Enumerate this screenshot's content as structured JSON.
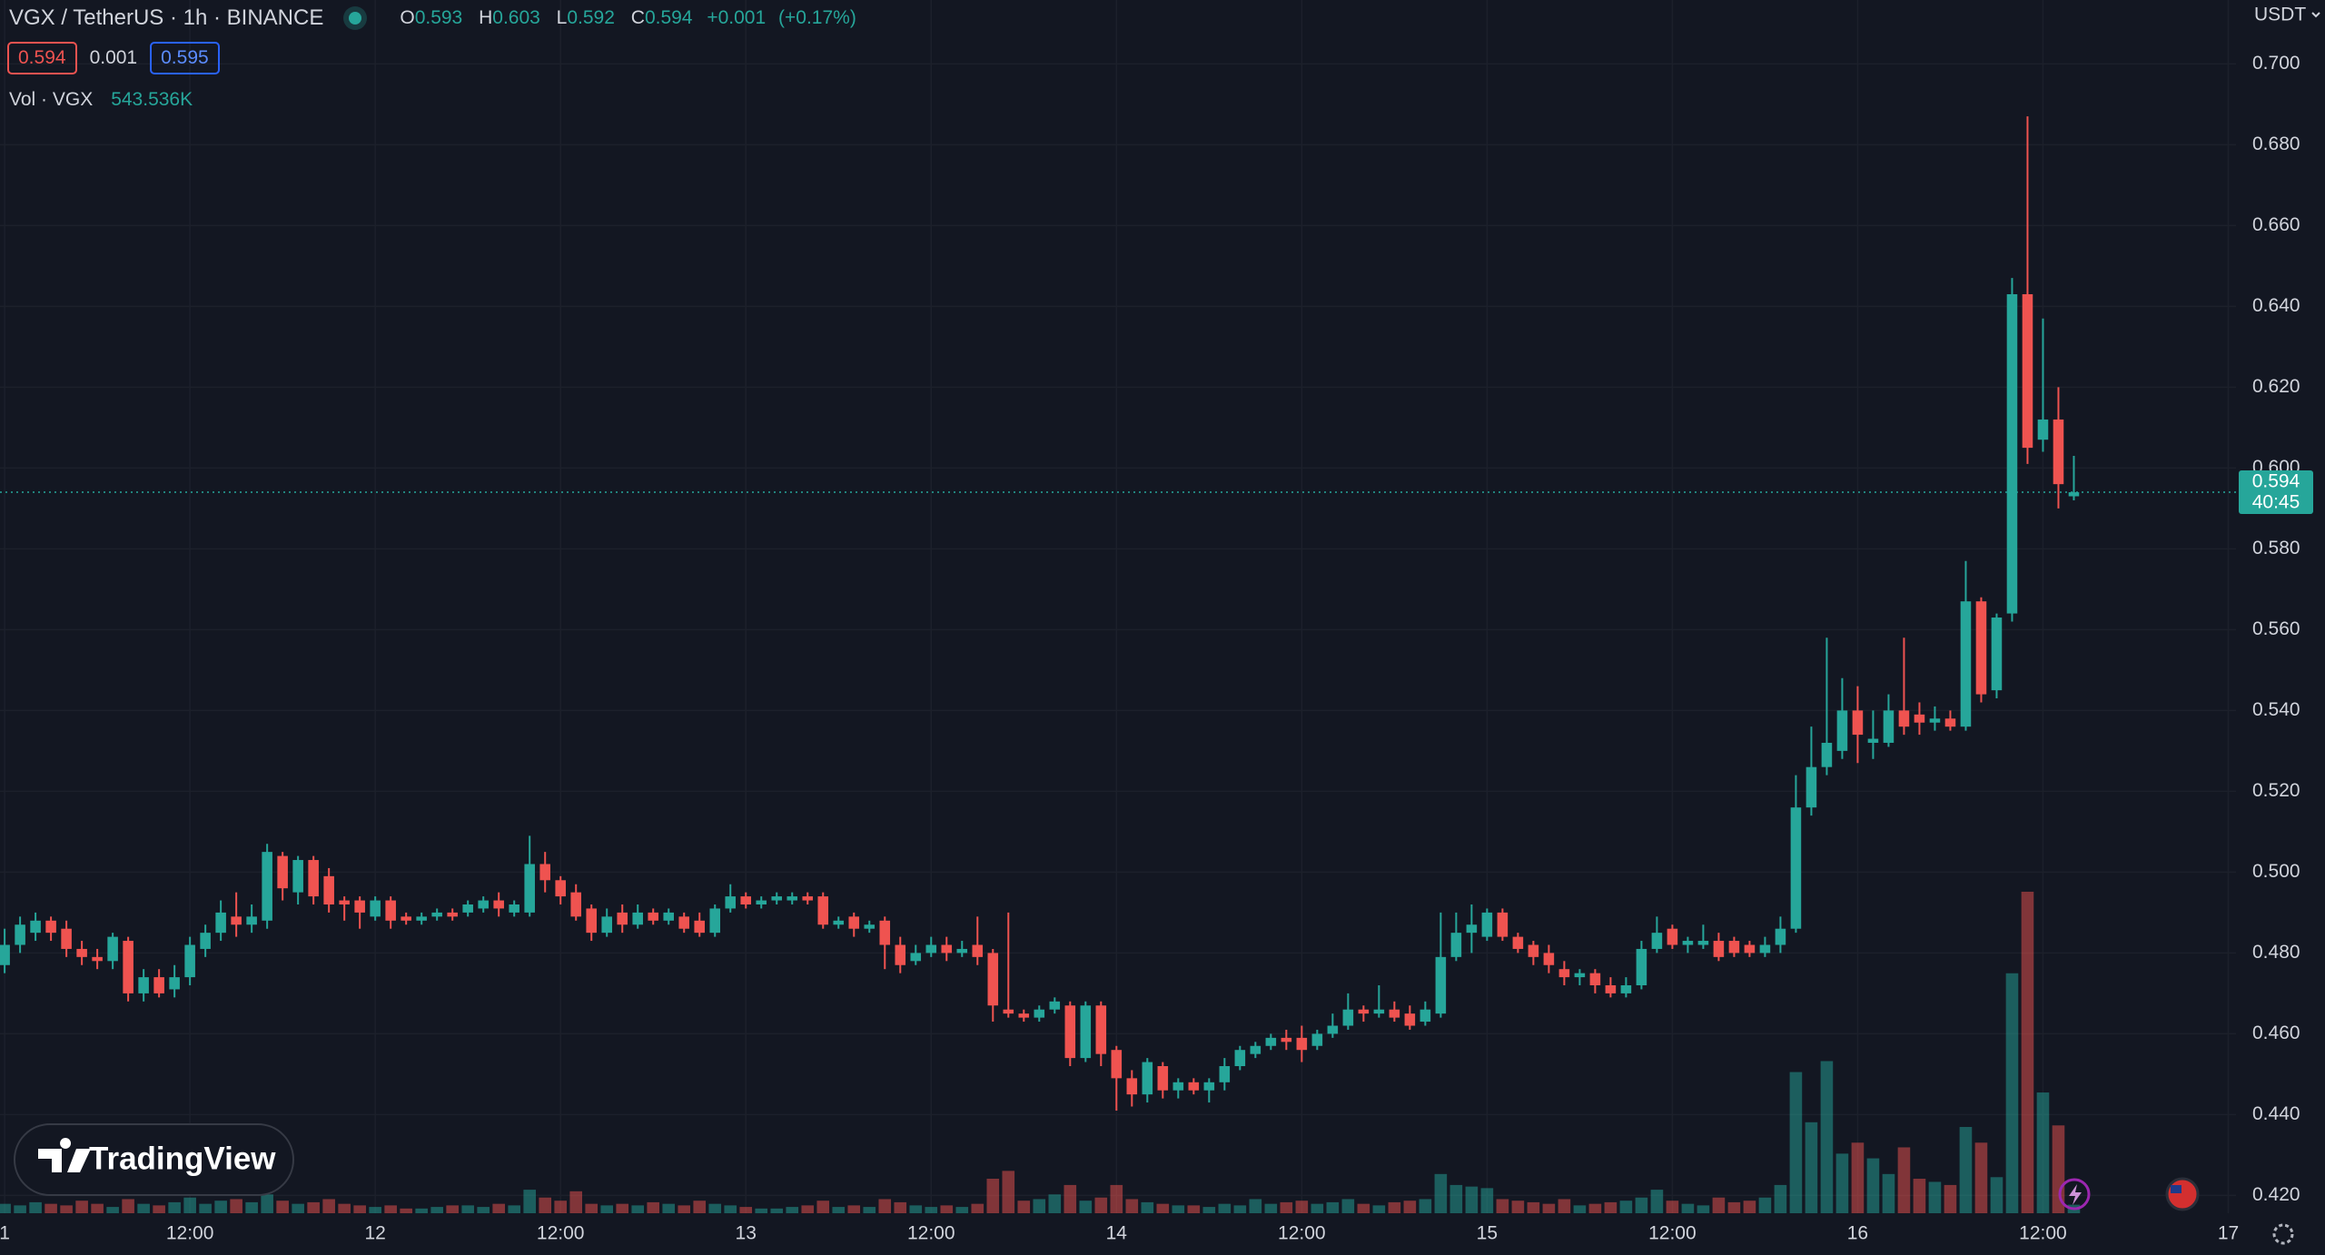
{
  "chart_data": {
    "type": "candlestick",
    "title": "VGX / TetherUS · 1h · BINANCE",
    "ohlc_labels": [
      "O",
      "H",
      "L",
      "C"
    ],
    "change": "+0.001",
    "change_pct": "(+0.17%)",
    "bid": 0.594,
    "spread": 0.001,
    "ask": 0.595,
    "currency": "USDT",
    "price_line": 0.594,
    "countdown": "40:45",
    "watermark": "TradingView",
    "up_color": "#26a69a",
    "down_color": "#ef5350",
    "grid": true,
    "open": [
      0.477,
      0.482,
      0.485,
      0.488,
      0.486,
      0.481,
      0.479,
      0.478,
      0.483,
      0.47,
      0.474,
      0.471,
      0.474,
      0.481,
      0.485,
      0.489,
      0.487,
      0.488,
      0.504,
      0.495,
      0.503,
      0.499,
      0.493,
      0.493,
      0.489,
      0.493,
      0.489,
      0.488,
      0.489,
      0.49,
      0.49,
      0.491,
      0.493,
      0.49,
      0.49,
      0.502,
      0.498,
      0.495,
      0.491,
      0.485,
      0.49,
      0.487,
      0.49,
      0.488,
      0.489,
      0.488,
      0.485,
      0.491,
      0.494,
      0.492,
      0.493,
      0.493,
      0.494,
      0.494,
      0.487,
      0.489,
      0.486,
      0.488,
      0.482,
      0.478,
      0.48,
      0.482,
      0.48,
      0.482,
      0.48,
      0.466,
      0.465,
      0.464,
      0.466,
      0.467,
      0.454,
      0.467,
      0.456,
      0.449,
      0.445,
      0.452,
      0.446,
      0.448,
      0.446,
      0.448,
      0.452,
      0.455,
      0.457,
      0.459,
      0.459,
      0.457,
      0.46,
      0.462,
      0.466,
      0.465,
      0.466,
      0.465,
      0.463,
      0.465,
      0.479,
      0.485,
      0.484,
      0.49,
      0.484,
      0.482,
      0.48,
      0.476,
      0.474,
      0.475,
      0.472,
      0.47,
      0.472,
      0.481,
      0.486,
      0.482,
      0.482,
      0.483,
      0.483,
      0.482,
      0.48,
      0.482,
      0.486,
      0.516,
      0.526,
      0.53,
      0.54,
      0.532,
      0.532,
      0.54,
      0.539,
      0.537,
      0.538,
      0.536,
      0.567,
      0.545,
      0.564,
      0.643,
      0.607,
      0.612,
      0.593
    ],
    "high": [
      0.486,
      0.489,
      0.49,
      0.489,
      0.488,
      0.483,
      0.481,
      0.485,
      0.484,
      0.476,
      0.476,
      0.477,
      0.484,
      0.487,
      0.493,
      0.495,
      0.492,
      0.507,
      0.505,
      0.504,
      0.504,
      0.501,
      0.494,
      0.494,
      0.494,
      0.494,
      0.49,
      0.49,
      0.491,
      0.491,
      0.493,
      0.494,
      0.495,
      0.493,
      0.509,
      0.505,
      0.499,
      0.497,
      0.492,
      0.491,
      0.492,
      0.492,
      0.491,
      0.491,
      0.49,
      0.49,
      0.492,
      0.497,
      0.495,
      0.494,
      0.495,
      0.495,
      0.495,
      0.495,
      0.489,
      0.49,
      0.488,
      0.489,
      0.484,
      0.482,
      0.484,
      0.484,
      0.483,
      0.489,
      0.481,
      0.49,
      0.466,
      0.467,
      0.469,
      0.468,
      0.468,
      0.468,
      0.457,
      0.451,
      0.454,
      0.453,
      0.449,
      0.449,
      0.449,
      0.454,
      0.457,
      0.458,
      0.46,
      0.461,
      0.462,
      0.461,
      0.465,
      0.47,
      0.467,
      0.472,
      0.468,
      0.467,
      0.468,
      0.49,
      0.49,
      0.492,
      0.491,
      0.491,
      0.485,
      0.483,
      0.482,
      0.478,
      0.476,
      0.476,
      0.474,
      0.474,
      0.483,
      0.489,
      0.487,
      0.484,
      0.487,
      0.485,
      0.484,
      0.483,
      0.484,
      0.489,
      0.524,
      0.536,
      0.558,
      0.548,
      0.546,
      0.54,
      0.544,
      0.558,
      0.542,
      0.541,
      0.54,
      0.577,
      0.568,
      0.564,
      0.647,
      0.687,
      0.637,
      0.62,
      0.603
    ],
    "low": [
      0.475,
      0.48,
      0.483,
      0.483,
      0.479,
      0.477,
      0.476,
      0.476,
      0.468,
      0.468,
      0.469,
      0.469,
      0.472,
      0.479,
      0.483,
      0.484,
      0.485,
      0.486,
      0.493,
      0.492,
      0.492,
      0.49,
      0.488,
      0.486,
      0.488,
      0.486,
      0.487,
      0.487,
      0.488,
      0.488,
      0.489,
      0.49,
      0.489,
      0.489,
      0.489,
      0.495,
      0.492,
      0.488,
      0.483,
      0.484,
      0.485,
      0.486,
      0.487,
      0.487,
      0.485,
      0.484,
      0.484,
      0.49,
      0.491,
      0.491,
      0.492,
      0.492,
      0.492,
      0.486,
      0.486,
      0.484,
      0.485,
      0.476,
      0.475,
      0.477,
      0.479,
      0.478,
      0.479,
      0.477,
      0.463,
      0.464,
      0.463,
      0.463,
      0.465,
      0.452,
      0.453,
      0.452,
      0.441,
      0.442,
      0.443,
      0.444,
      0.444,
      0.445,
      0.443,
      0.446,
      0.451,
      0.454,
      0.456,
      0.456,
      0.453,
      0.456,
      0.459,
      0.461,
      0.463,
      0.464,
      0.463,
      0.461,
      0.462,
      0.464,
      0.478,
      0.48,
      0.483,
      0.483,
      0.48,
      0.477,
      0.475,
      0.472,
      0.472,
      0.47,
      0.469,
      0.469,
      0.471,
      0.48,
      0.481,
      0.48,
      0.481,
      0.478,
      0.479,
      0.479,
      0.479,
      0.48,
      0.485,
      0.514,
      0.524,
      0.528,
      0.527,
      0.528,
      0.531,
      0.534,
      0.534,
      0.535,
      0.535,
      0.535,
      0.542,
      0.543,
      0.562,
      0.601,
      0.604,
      0.59,
      0.592
    ],
    "close": [
      0.482,
      0.487,
      0.488,
      0.485,
      0.481,
      0.479,
      0.478,
      0.484,
      0.47,
      0.474,
      0.47,
      0.474,
      0.482,
      0.485,
      0.49,
      0.487,
      0.489,
      0.505,
      0.496,
      0.503,
      0.494,
      0.492,
      0.492,
      0.49,
      0.493,
      0.488,
      0.488,
      0.489,
      0.49,
      0.489,
      0.492,
      0.493,
      0.491,
      0.492,
      0.502,
      0.498,
      0.494,
      0.489,
      0.485,
      0.489,
      0.487,
      0.49,
      0.488,
      0.49,
      0.486,
      0.485,
      0.491,
      0.494,
      0.492,
      0.493,
      0.494,
      0.494,
      0.493,
      0.487,
      0.488,
      0.486,
      0.487,
      0.482,
      0.477,
      0.48,
      0.482,
      0.48,
      0.481,
      0.479,
      0.467,
      0.465,
      0.464,
      0.466,
      0.468,
      0.454,
      0.467,
      0.455,
      0.449,
      0.445,
      0.453,
      0.446,
      0.448,
      0.446,
      0.448,
      0.452,
      0.456,
      0.457,
      0.459,
      0.458,
      0.456,
      0.46,
      0.462,
      0.466,
      0.465,
      0.466,
      0.464,
      0.462,
      0.466,
      0.479,
      0.485,
      0.487,
      0.49,
      0.484,
      0.481,
      0.479,
      0.477,
      0.474,
      0.475,
      0.472,
      0.47,
      0.472,
      0.481,
      0.485,
      0.482,
      0.483,
      0.483,
      0.479,
      0.48,
      0.48,
      0.482,
      0.486,
      0.516,
      0.526,
      0.532,
      0.54,
      0.534,
      0.533,
      0.54,
      0.536,
      0.537,
      0.538,
      0.536,
      0.567,
      0.544,
      0.563,
      0.643,
      0.605,
      0.612,
      0.596,
      0.594
    ],
    "volume": {
      "name": "Vol · VGX",
      "value_label": "543.536K",
      "values": [
        600000,
        500000,
        700000,
        600000,
        500000,
        800000,
        600000,
        400000,
        900000,
        600000,
        500000,
        700000,
        1000000,
        600000,
        800000,
        900000,
        700000,
        1200000,
        800000,
        600000,
        700000,
        900000,
        600000,
        500000,
        400000,
        500000,
        300000,
        300000,
        400000,
        500000,
        500000,
        400000,
        600000,
        500000,
        1500000,
        1000000,
        800000,
        1400000,
        600000,
        500000,
        600000,
        500000,
        700000,
        600000,
        500000,
        800000,
        600000,
        500000,
        400000,
        300000,
        300000,
        400000,
        500000,
        800000,
        400000,
        500000,
        400000,
        900000,
        700000,
        500000,
        400000,
        500000,
        400000,
        600000,
        2200000,
        2700000,
        800000,
        900000,
        1200000,
        1800000,
        800000,
        1000000,
        1800000,
        900000,
        700000,
        600000,
        500000,
        500000,
        400000,
        600000,
        500000,
        900000,
        600000,
        700000,
        800000,
        600000,
        700000,
        900000,
        600000,
        500000,
        700000,
        800000,
        900000,
        2500000,
        1800000,
        1700000,
        1600000,
        900000,
        800000,
        700000,
        600000,
        900000,
        500000,
        600000,
        700000,
        800000,
        1000000,
        1500000,
        800000,
        600000,
        500000,
        1000000,
        700000,
        800000,
        1000000,
        1800000,
        9000000,
        5800000,
        9700000,
        3800000,
        4500000,
        3500000,
        2500000,
        4200000,
        2200000,
        2000000,
        1800000,
        5500000,
        4500000,
        2300000,
        15300000,
        20500000,
        7700000,
        5600000,
        543536
      ]
    },
    "xlim": [
      -0.3,
      144.5
    ],
    "xticks": [
      {
        "value": 0,
        "label": "1"
      },
      {
        "value": 12,
        "label": "12:00"
      },
      {
        "value": 24,
        "label": "12"
      },
      {
        "value": 36,
        "label": "12:00"
      },
      {
        "value": 48,
        "label": "13"
      },
      {
        "value": 60,
        "label": "12:00"
      },
      {
        "value": 72,
        "label": "14"
      },
      {
        "value": 84,
        "label": "12:00"
      },
      {
        "value": 96,
        "label": "15"
      },
      {
        "value": 108,
        "label": "12:00"
      },
      {
        "value": 120,
        "label": "16"
      },
      {
        "value": 132,
        "label": "12:00"
      },
      {
        "value": 144,
        "label": "17"
      }
    ],
    "ylim": [
      0.4156,
      0.7158
    ],
    "yticks": [
      {
        "value": 0.42,
        "label": "0.420"
      },
      {
        "value": 0.44,
        "label": "0.440"
      },
      {
        "value": 0.46,
        "label": "0.460"
      },
      {
        "value": 0.48,
        "label": "0.480"
      },
      {
        "value": 0.5,
        "label": "0.500"
      },
      {
        "value": 0.52,
        "label": "0.520"
      },
      {
        "value": 0.54,
        "label": "0.540"
      },
      {
        "value": 0.56,
        "label": "0.560"
      },
      {
        "value": 0.58,
        "label": "0.580"
      },
      {
        "value": 0.6,
        "label": "0.600"
      },
      {
        "value": 0.62,
        "label": "0.620"
      },
      {
        "value": 0.64,
        "label": "0.640"
      },
      {
        "value": 0.66,
        "label": "0.660"
      },
      {
        "value": 0.68,
        "label": "0.680"
      },
      {
        "value": 0.7,
        "label": "0.700"
      }
    ]
  }
}
